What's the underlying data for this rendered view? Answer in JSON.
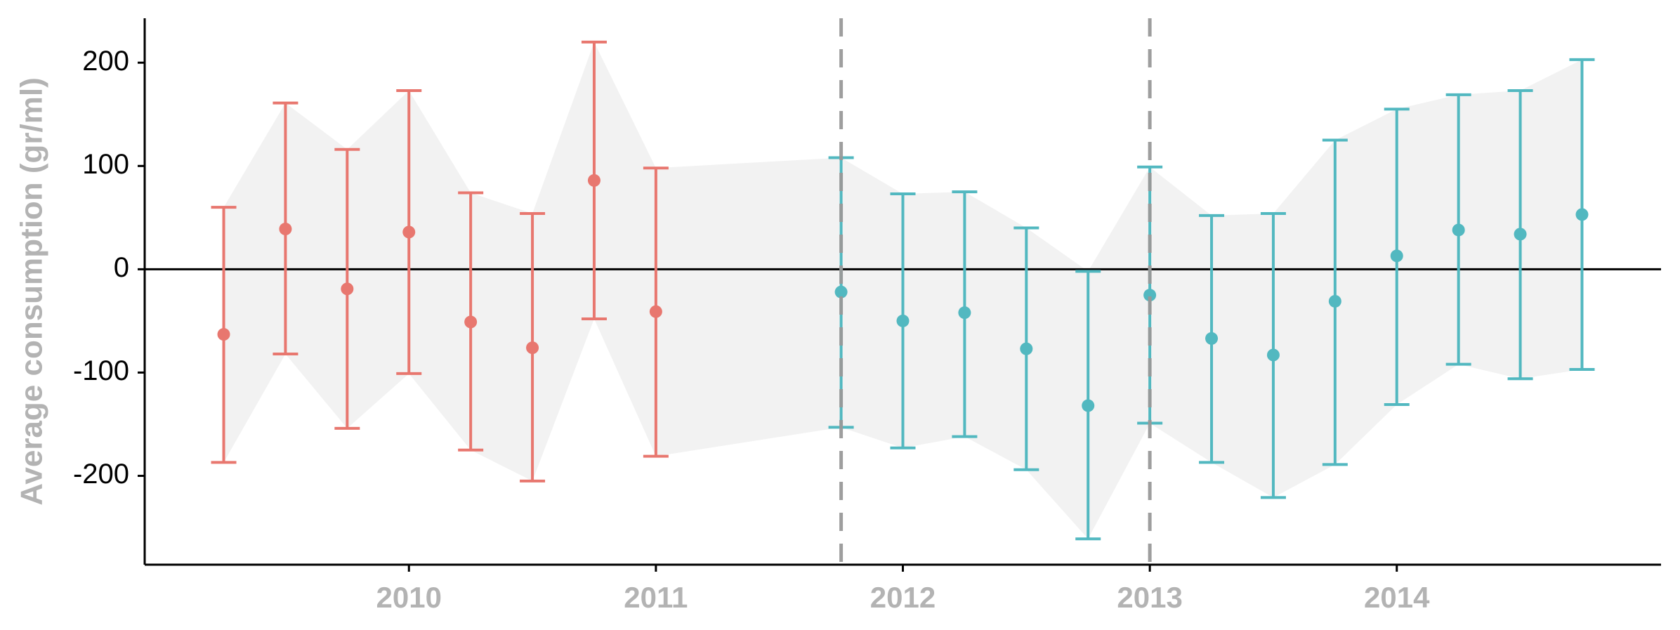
{
  "chart_data": {
    "type": "errorbar",
    "y_label": "Average consumption (gr/ml)",
    "xlim": [
      2008.93,
      2015.07
    ],
    "xticks": [
      2010,
      2011,
      2012,
      2013,
      2014
    ],
    "ylim": [
      -286,
      243
    ],
    "yticks": [
      -200,
      -100,
      0,
      100,
      200
    ],
    "hline": 0,
    "vlines": [
      2011.75,
      2013
    ],
    "vline_color": "#999999",
    "ribbon_color": "#f2f2f2",
    "series": [
      {
        "color": "#e8776f",
        "x": [
          2009.25,
          2009.5,
          2009.75,
          2010,
          2010.25,
          2010.5,
          2010.75,
          2011
        ],
        "values": [
          -63,
          39,
          -19,
          36,
          -51,
          -76,
          86,
          -41
        ],
        "lower": [
          -187,
          -82,
          -154,
          -101,
          -175,
          -205,
          -48,
          -181
        ],
        "upper": [
          60,
          161,
          116,
          173,
          74,
          54,
          220,
          98
        ]
      },
      {
        "color": "#52b8c0",
        "x": [
          2011.75,
          2012,
          2012.25,
          2012.5,
          2012.75,
          2013,
          2013.25,
          2013.5,
          2013.75,
          2014,
          2014.25,
          2014.5,
          2014.75
        ],
        "values": [
          -22,
          -50,
          -42,
          -77,
          -132,
          -25,
          -67,
          -83,
          -31,
          13,
          38,
          34,
          53
        ],
        "lower": [
          -153,
          -173,
          -162,
          -194,
          -261,
          -149,
          -187,
          -221,
          -189,
          -131,
          -92,
          -106,
          -97
        ],
        "upper": [
          108,
          73,
          75,
          40,
          -2,
          99,
          52,
          54,
          125,
          155,
          169,
          173,
          203
        ]
      }
    ]
  }
}
